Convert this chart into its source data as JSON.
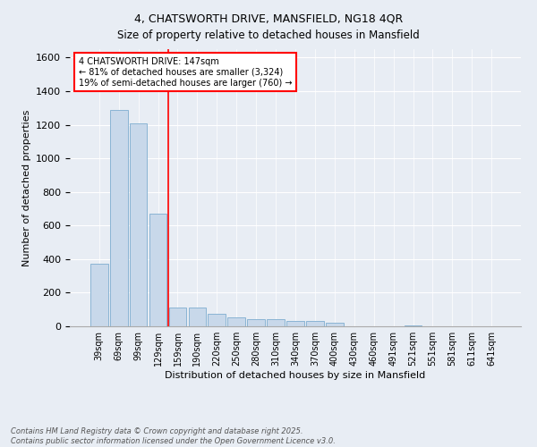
{
  "title1": "4, CHATSWORTH DRIVE, MANSFIELD, NG18 4QR",
  "title2": "Size of property relative to detached houses in Mansfield",
  "xlabel": "Distribution of detached houses by size in Mansfield",
  "ylabel": "Number of detached properties",
  "categories": [
    "39sqm",
    "69sqm",
    "99sqm",
    "129sqm",
    "159sqm",
    "190sqm",
    "220sqm",
    "250sqm",
    "280sqm",
    "310sqm",
    "340sqm",
    "370sqm",
    "400sqm",
    "430sqm",
    "460sqm",
    "491sqm",
    "521sqm",
    "551sqm",
    "581sqm",
    "611sqm",
    "641sqm"
  ],
  "values": [
    375,
    1290,
    1210,
    670,
    110,
    110,
    75,
    55,
    45,
    45,
    30,
    30,
    20,
    0,
    0,
    0,
    5,
    0,
    0,
    0,
    0
  ],
  "bar_color": "#c8d8ea",
  "bar_edge_color": "#8ab4d4",
  "background_color": "#e8edf4",
  "annotation_line1": "4 CHATSWORTH DRIVE: 147sqm",
  "annotation_line2": "← 81% of detached houses are smaller (3,324)",
  "annotation_line3": "19% of semi-detached houses are larger (760) →",
  "footer": "Contains HM Land Registry data © Crown copyright and database right 2025.\nContains public sector information licensed under the Open Government Licence v3.0.",
  "ylim": [
    0,
    1650
  ],
  "yticks": [
    0,
    200,
    400,
    600,
    800,
    1000,
    1200,
    1400,
    1600
  ]
}
